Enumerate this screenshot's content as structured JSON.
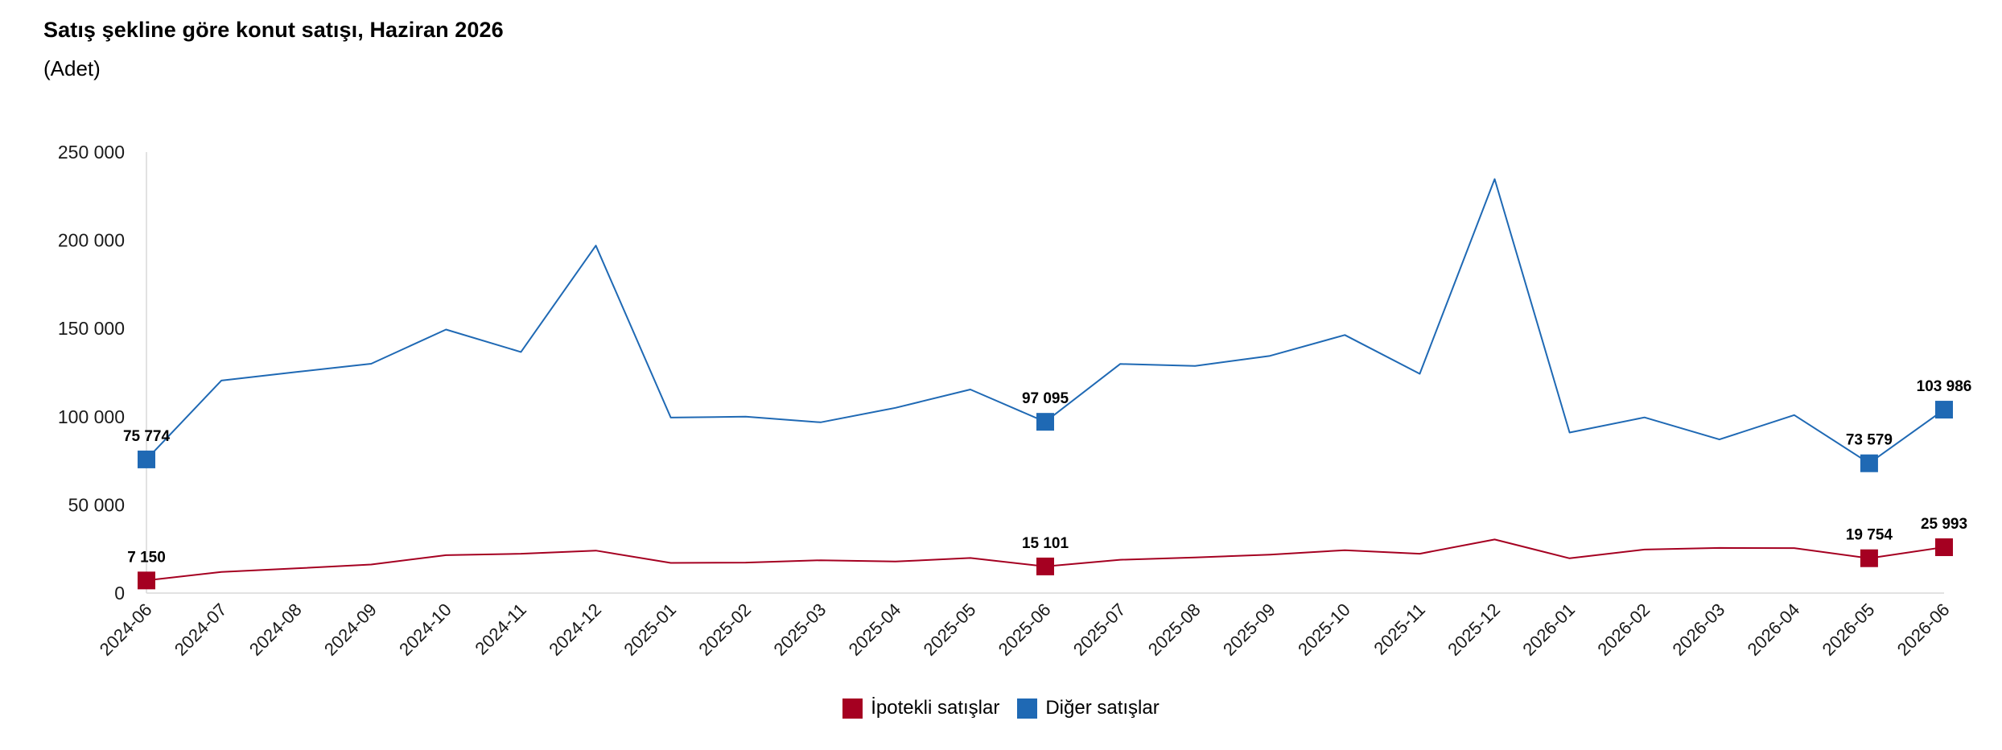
{
  "title": "Satış şekline göre konut satışı, Haziran 2026",
  "subtitle": "(Adet)",
  "chart_data": {
    "type": "line",
    "title": "Satış şekline göre konut satışı, Haziran 2026",
    "subtitle": "(Adet)",
    "xlabel": "",
    "ylabel": "",
    "ylim": [
      0,
      250000
    ],
    "yticks": [
      0,
      50000,
      100000,
      150000,
      200000,
      250000
    ],
    "ytick_labels": [
      "0",
      "50 000",
      "100 000",
      "150 000",
      "200 000",
      "250 000"
    ],
    "grid": false,
    "legend_placement": "bottom-center",
    "categories": [
      "2024-06",
      "2024-07",
      "2024-08",
      "2024-09",
      "2024-10",
      "2024-11",
      "2024-12",
      "2025-01",
      "2025-02",
      "2025-03",
      "2025-04",
      "2025-05",
      "2025-06",
      "2025-07",
      "2025-08",
      "2025-09",
      "2025-10",
      "2025-11",
      "2025-12",
      "2026-01",
      "2026-02",
      "2026-03",
      "2026-04",
      "2026-05",
      "2026-06"
    ],
    "series": [
      {
        "name": "İpotekli satışlar",
        "color": "#a50021",
        "values": [
          7150,
          12000,
          14000,
          16200,
          21500,
          22300,
          24100,
          17100,
          17300,
          18600,
          17900,
          19900,
          15101,
          18900,
          20200,
          21800,
          24300,
          22300,
          30400,
          19700,
          24700,
          25600,
          25500,
          19754,
          25993
        ],
        "labeled_indices": [
          0,
          12,
          23,
          24
        ],
        "labels": [
          "7 150",
          "15 101",
          "19 754",
          "25 993"
        ]
      },
      {
        "name": "Diğer satışlar",
        "color": "#1f69b4",
        "values": [
          75774,
          120500,
          125300,
          130000,
          149400,
          136700,
          197000,
          99500,
          100000,
          96800,
          105000,
          115400,
          97095,
          129900,
          128800,
          134500,
          146300,
          124300,
          234700,
          91000,
          99600,
          87100,
          100900,
          73579,
          103986
        ],
        "labeled_indices": [
          0,
          12,
          23,
          24
        ],
        "labels": [
          "75 774",
          "97 095",
          "73 579",
          "103 986"
        ]
      }
    ]
  }
}
